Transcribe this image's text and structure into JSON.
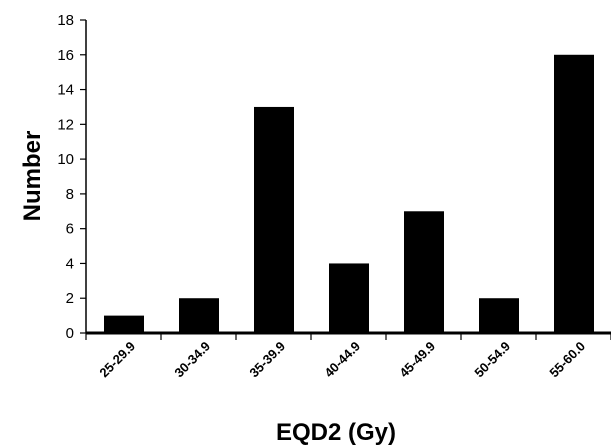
{
  "chart_data": {
    "type": "bar",
    "title": "",
    "xlabel": "EQD2 (Gy)",
    "ylabel": "Number",
    "categories": [
      "25-29.9",
      "30-34.9",
      "35-39.9",
      "40-44.9",
      "45-49.9",
      "50-54.9",
      "55-60.0"
    ],
    "values": [
      1,
      2,
      13,
      4,
      7,
      2,
      16
    ],
    "ylim": [
      0,
      18
    ],
    "yticks": [
      "0",
      "2",
      "4",
      "6",
      "8",
      "10",
      "12",
      "14",
      "16",
      "18"
    ],
    "grid": false,
    "legend": "none",
    "bar_color": "#000000"
  }
}
